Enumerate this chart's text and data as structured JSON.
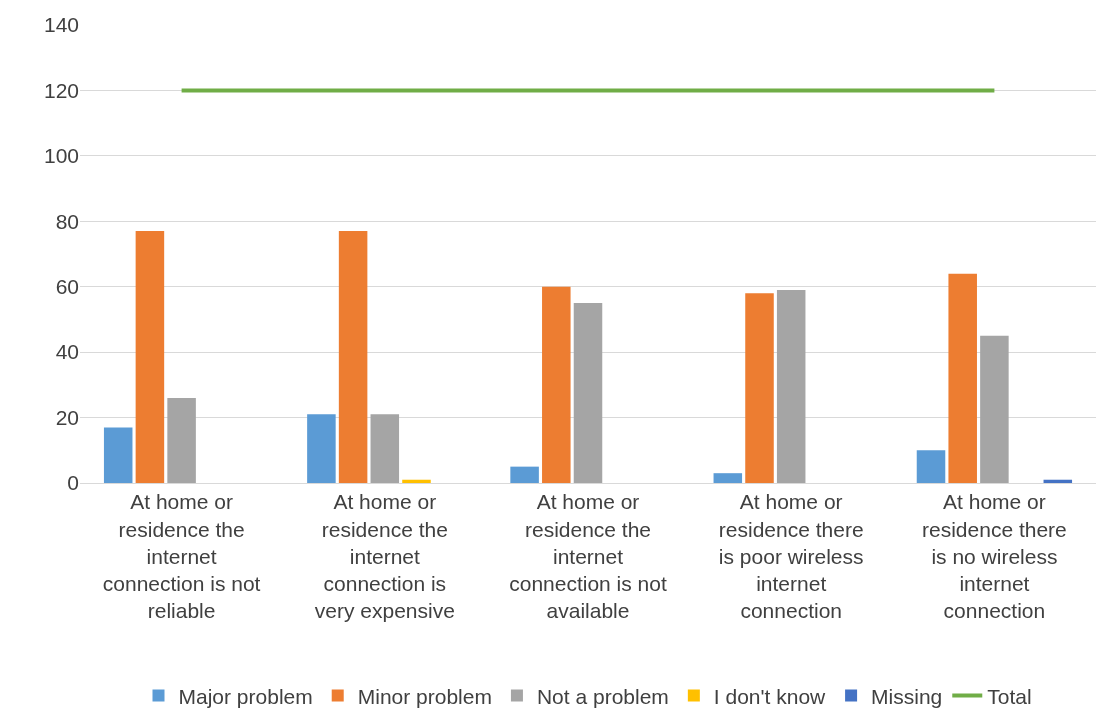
{
  "chart_data": {
    "type": "bar",
    "categories": [
      "At home or residence the internet connection is not reliable",
      "At home or residence the internet connection is very expensive",
      "At home or residence the internet connection is not available",
      "At home or residence there is poor wireless internet connection",
      "At home or residence there is no wireless internet connection"
    ],
    "series": [
      {
        "name": "Major problem",
        "color": "#5b9bd5",
        "values": [
          17,
          21,
          5,
          3,
          10
        ]
      },
      {
        "name": "Minor problem",
        "color": "#ed7d31",
        "values": [
          77,
          77,
          60,
          58,
          64
        ]
      },
      {
        "name": "Not a problem",
        "color": "#a5a5a5",
        "values": [
          26,
          21,
          55,
          59,
          45
        ]
      },
      {
        "name": "I don't know",
        "color": "#ffc000",
        "values": [
          0,
          1,
          0,
          0,
          0
        ]
      },
      {
        "name": "Missing",
        "color": "#4472c4",
        "values": [
          0,
          0,
          0,
          0,
          1
        ]
      },
      {
        "name": "Total",
        "color": "#70ad47",
        "type": "line",
        "values": [
          120,
          120,
          120,
          120,
          120
        ]
      }
    ],
    "ylim": [
      0,
      140
    ],
    "yticks": [
      0,
      20,
      40,
      60,
      80,
      100,
      120,
      140
    ],
    "grid": "y",
    "legend": "bottom",
    "marker": "none"
  }
}
